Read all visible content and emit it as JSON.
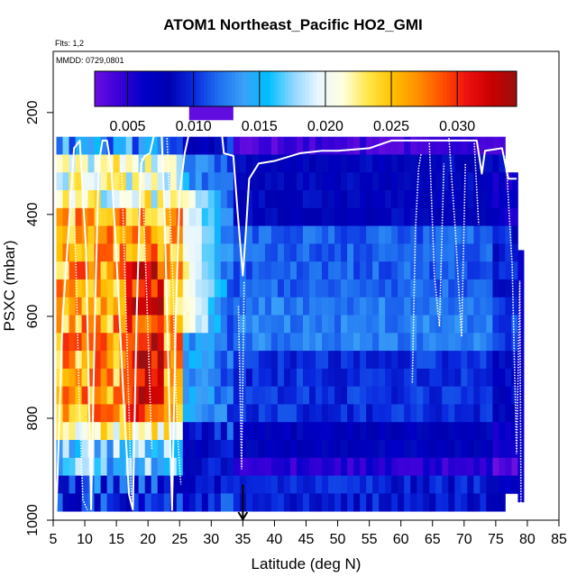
{
  "title": "ATOM1 Northeast_Pacific HO2_GMI",
  "flights_note": "Flts: 1,2",
  "date_note": "MMDD: 0729,0801",
  "chart_data": {
    "type": "heatmap",
    "title": "ATOM1 Northeast_Pacific HO2_GMI",
    "xlabel": "Latitude (deg N)",
    "ylabel": "PSXC (mbar)",
    "xlim": [
      5,
      85
    ],
    "ylim": [
      1000,
      80
    ],
    "y_reversed": true,
    "grid": false,
    "x_ticks": [
      5,
      10,
      15,
      20,
      25,
      30,
      35,
      40,
      45,
      50,
      55,
      60,
      65,
      70,
      75,
      80,
      85
    ],
    "y_ticks": [
      200,
      400,
      600,
      800,
      1000
    ],
    "colorbar": {
      "placement": "top-inside",
      "range": [
        0.0025,
        0.0345
      ],
      "ticks": [
        "0.005",
        "0.010",
        "0.015",
        "0.020",
        "0.025",
        "0.030"
      ],
      "tick_values": [
        0.005,
        0.01,
        0.015,
        0.02,
        0.025,
        0.03
      ],
      "colors": [
        "#6a0fe0",
        "#3a00d8",
        "#0000c8",
        "#0000b0",
        "#0a2ae0",
        "#1f6ff0",
        "#3aa0f8",
        "#00bfff",
        "#8fd6ff",
        "#e8f6ff",
        "#ffffe0",
        "#ffe84a",
        "#ffc000",
        "#ff9000",
        "#ff5000",
        "#ee1010",
        "#c80000",
        "#9a1010"
      ]
    },
    "pressure_levels": [
      230,
      265,
      300,
      335,
      370,
      405,
      440,
      475,
      510,
      545,
      580,
      615,
      650,
      685,
      720,
      755,
      790,
      825,
      860,
      895,
      930,
      965
    ],
    "lat_bins": [
      6,
      7,
      8,
      9,
      10,
      11,
      12,
      13,
      14,
      15,
      16,
      17,
      18,
      19,
      20,
      21,
      22,
      23,
      24,
      25,
      26,
      27,
      28,
      29,
      30,
      31,
      32,
      33,
      34,
      35,
      36,
      37,
      38,
      39,
      40,
      41,
      42,
      43,
      44,
      45,
      46,
      47,
      48,
      49,
      50,
      51,
      52,
      53,
      54,
      55,
      56,
      57,
      58,
      59,
      60,
      61,
      62,
      63,
      64,
      65,
      66,
      67,
      68,
      69,
      70,
      71,
      72,
      73,
      74,
      75,
      76,
      77,
      78,
      79
    ],
    "extra_cells": [
      {
        "lat_min": 26.5,
        "lat_max": 33.5,
        "p_min": 165,
        "p_max": 215,
        "value": 0.0028
      },
      {
        "lat_min": 78.5,
        "lat_max": 79.5,
        "p_min": 470,
        "p_max": 965,
        "value": 0.006
      }
    ],
    "flight_paths": [
      [
        [
          5.5,
          985
        ],
        [
          6.5,
          600
        ],
        [
          7.5,
          420
        ],
        [
          8.3,
          270
        ],
        [
          9.2,
          255
        ],
        [
          10.2,
          470
        ],
        [
          11.0,
          980
        ]
      ],
      [
        [
          11.0,
          980
        ],
        [
          11.6,
          600
        ],
        [
          12.2,
          300
        ],
        [
          12.8,
          255
        ],
        [
          13.5,
          255
        ],
        [
          14.2,
          310
        ],
        [
          15.0,
          480
        ],
        [
          16.0,
          730
        ],
        [
          17.0,
          950
        ],
        [
          17.6,
          980
        ]
      ],
      [
        [
          17.6,
          980
        ],
        [
          18.2,
          600
        ],
        [
          18.9,
          300
        ],
        [
          19.5,
          285
        ],
        [
          20.3,
          280
        ],
        [
          21.3,
          225
        ],
        [
          22.1,
          225
        ],
        [
          22.6,
          390
        ],
        [
          23.2,
          690
        ],
        [
          23.8,
          980
        ],
        [
          24.4,
          600
        ],
        [
          25.0,
          360
        ],
        [
          25.8,
          280
        ],
        [
          26.5,
          240
        ],
        [
          27.5,
          220
        ],
        [
          31.5,
          220
        ],
        [
          32.0,
          280
        ],
        [
          33.5,
          285
        ],
        [
          34.2,
          400
        ],
        [
          35.0,
          520
        ],
        [
          35.5,
          430
        ],
        [
          36.0,
          330
        ],
        [
          37.5,
          300
        ],
        [
          40.0,
          295
        ],
        [
          44.0,
          280
        ],
        [
          47.5,
          275
        ],
        [
          50.0,
          275
        ],
        [
          55.0,
          270
        ],
        [
          58.5,
          255
        ],
        [
          65.0,
          255
        ],
        [
          72.0,
          255
        ],
        [
          72.8,
          320
        ],
        [
          73.3,
          275
        ],
        [
          76.0,
          270
        ],
        [
          77.0,
          330
        ],
        [
          78.3,
          330
        ]
      ]
    ],
    "dotted_paths": [
      [
        [
          8.0,
          290
        ],
        [
          8.6,
          500
        ],
        [
          9.1,
          760
        ],
        [
          9.7,
          960
        ],
        [
          10.4,
          980
        ]
      ],
      [
        [
          15.8,
          300
        ],
        [
          16.6,
          620
        ],
        [
          17.4,
          960
        ]
      ],
      [
        [
          19.0,
          290
        ],
        [
          19.8,
          560
        ],
        [
          20.6,
          860
        ]
      ],
      [
        [
          23.0,
          250
        ],
        [
          23.9,
          520
        ],
        [
          24.6,
          820
        ],
        [
          25.2,
          930
        ]
      ],
      [
        [
          34.3,
          580
        ],
        [
          34.8,
          900
        ],
        [
          35.2,
          530
        ]
      ],
      [
        [
          61.8,
          730
        ],
        [
          62.3,
          430
        ],
        [
          62.8,
          310
        ],
        [
          63.2,
          280
        ]
      ],
      [
        [
          64.5,
          260
        ],
        [
          65.3,
          520
        ],
        [
          66.1,
          620
        ],
        [
          66.8,
          300
        ]
      ],
      [
        [
          67.6,
          250
        ],
        [
          68.6,
          430
        ],
        [
          69.6,
          640
        ],
        [
          70.2,
          300
        ]
      ],
      [
        [
          71.6,
          260
        ],
        [
          72.3,
          420
        ]
      ],
      [
        [
          76.6,
          285
        ],
        [
          77.6,
          500
        ],
        [
          78.3,
          870
        ],
        [
          78.8,
          530
        ],
        [
          79.0,
          980
        ]
      ]
    ],
    "arrow_marker": {
      "lat": 35,
      "p_from": 930,
      "p_to": 1000
    }
  }
}
